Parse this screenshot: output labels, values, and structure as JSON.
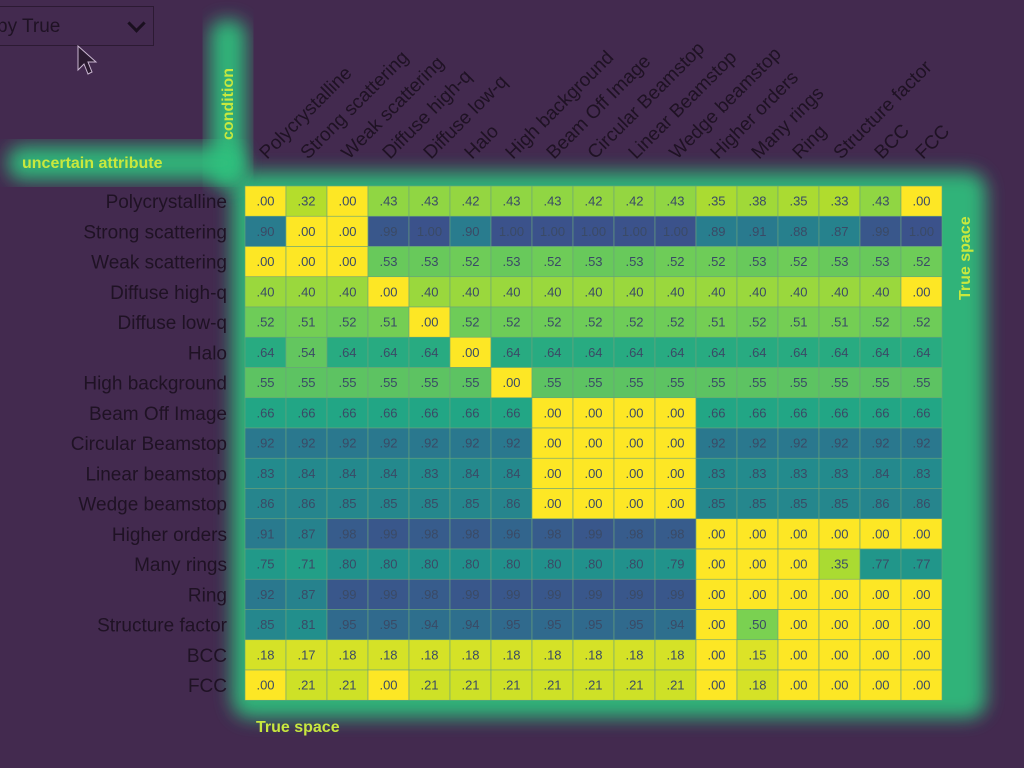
{
  "dropdown": {
    "selected": "py True"
  },
  "axis_labels": {
    "uncertain": "uncertain attribute",
    "condition": "condition",
    "true_space_right": "True space",
    "true_space_bottom": "True space"
  },
  "chart_data": {
    "type": "heatmap",
    "rows": [
      "Polycrystalline",
      "Strong scattering",
      "Weak scattering",
      "Diffuse high-q",
      "Diffuse low-q",
      "Halo",
      "High background",
      "Beam Off Image",
      "Circular Beamstop",
      "Linear beamstop",
      "Wedge beamstop",
      "Higher orders",
      "Many rings",
      "Ring",
      "Structure factor",
      "BCC",
      "FCC"
    ],
    "columns": [
      "Polycrystalline",
      "Strong scattering",
      "Weak scattering",
      "Diffuse high-q",
      "Diffuse low-q",
      "Halo",
      "High background",
      "Beam Off Image",
      "Circular Beamstop",
      "Linear Beamstop",
      "Wedge beamstop",
      "Higher orders",
      "Many rings",
      "Ring",
      "Structure factor",
      "BCC",
      "FCC"
    ],
    "values": [
      [
        ".00",
        ".32",
        ".00",
        ".43",
        ".43",
        ".42",
        ".43",
        ".43",
        ".42",
        ".42",
        ".43",
        ".35",
        ".38",
        ".35",
        ".33",
        ".43",
        ".00"
      ],
      [
        ".90",
        ".00",
        ".00",
        ".99",
        "1.00",
        ".90",
        "1.00",
        "1.00",
        "1.00",
        "1.00",
        "1.00",
        ".89",
        ".91",
        ".88",
        ".87",
        ".99",
        "1.00"
      ],
      [
        ".00",
        ".00",
        ".00",
        ".53",
        ".53",
        ".52",
        ".53",
        ".52",
        ".53",
        ".53",
        ".52",
        ".52",
        ".53",
        ".52",
        ".53",
        ".53",
        ".52"
      ],
      [
        ".40",
        ".40",
        ".40",
        ".00",
        ".40",
        ".40",
        ".40",
        ".40",
        ".40",
        ".40",
        ".40",
        ".40",
        ".40",
        ".40",
        ".40",
        ".40",
        ".00"
      ],
      [
        ".52",
        ".51",
        ".52",
        ".51",
        ".00",
        ".52",
        ".52",
        ".52",
        ".52",
        ".52",
        ".52",
        ".51",
        ".52",
        ".51",
        ".51",
        ".52",
        ".52"
      ],
      [
        ".64",
        ".54",
        ".64",
        ".64",
        ".64",
        ".00",
        ".64",
        ".64",
        ".64",
        ".64",
        ".64",
        ".64",
        ".64",
        ".64",
        ".64",
        ".64",
        ".64"
      ],
      [
        ".55",
        ".55",
        ".55",
        ".55",
        ".55",
        ".55",
        ".00",
        ".55",
        ".55",
        ".55",
        ".55",
        ".55",
        ".55",
        ".55",
        ".55",
        ".55",
        ".55"
      ],
      [
        ".66",
        ".66",
        ".66",
        ".66",
        ".66",
        ".66",
        ".66",
        ".00",
        ".00",
        ".00",
        ".00",
        ".66",
        ".66",
        ".66",
        ".66",
        ".66",
        ".66"
      ],
      [
        ".92",
        ".92",
        ".92",
        ".92",
        ".92",
        ".92",
        ".92",
        ".00",
        ".00",
        ".00",
        ".00",
        ".92",
        ".92",
        ".92",
        ".92",
        ".92",
        ".92"
      ],
      [
        ".83",
        ".84",
        ".84",
        ".84",
        ".83",
        ".84",
        ".84",
        ".00",
        ".00",
        ".00",
        ".00",
        ".83",
        ".83",
        ".83",
        ".83",
        ".84",
        ".83"
      ],
      [
        ".86",
        ".86",
        ".85",
        ".85",
        ".85",
        ".85",
        ".86",
        ".00",
        ".00",
        ".00",
        ".00",
        ".85",
        ".85",
        ".85",
        ".85",
        ".86",
        ".86"
      ],
      [
        ".91",
        ".87",
        ".98",
        ".99",
        ".98",
        ".98",
        ".96",
        ".98",
        ".99",
        ".98",
        ".98",
        ".00",
        ".00",
        ".00",
        ".00",
        ".00",
        ".00"
      ],
      [
        ".75",
        ".71",
        ".80",
        ".80",
        ".80",
        ".80",
        ".80",
        ".80",
        ".80",
        ".80",
        ".79",
        ".00",
        ".00",
        ".00",
        ".35",
        ".77",
        ".77"
      ],
      [
        ".92",
        ".87",
        ".99",
        ".99",
        ".98",
        ".99",
        ".99",
        ".99",
        ".99",
        ".99",
        ".99",
        ".00",
        ".00",
        ".00",
        ".00",
        ".00",
        ".00"
      ],
      [
        ".85",
        ".81",
        ".95",
        ".95",
        ".94",
        ".94",
        ".95",
        ".95",
        ".95",
        ".95",
        ".94",
        ".00",
        ".50",
        ".00",
        ".00",
        ".00",
        ".00"
      ],
      [
        ".18",
        ".17",
        ".18",
        ".18",
        ".18",
        ".18",
        ".18",
        ".18",
        ".18",
        ".18",
        ".18",
        ".00",
        ".15",
        ".00",
        ".00",
        ".00",
        ".00"
      ],
      [
        ".00",
        ".21",
        ".21",
        ".00",
        ".21",
        ".21",
        ".21",
        ".21",
        ".21",
        ".21",
        ".21",
        ".00",
        ".18",
        ".00",
        ".00",
        ".00",
        ".00"
      ]
    ],
    "colormap": "viridis",
    "value_range": [
      0,
      1
    ]
  }
}
